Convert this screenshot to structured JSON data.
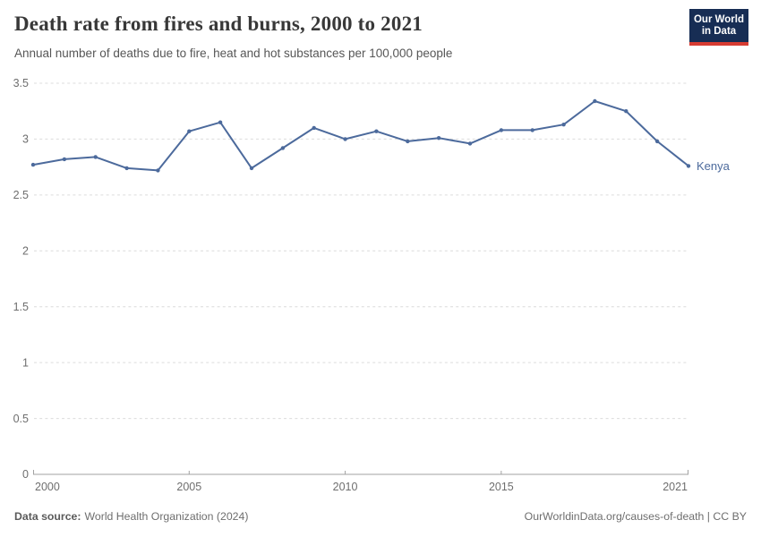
{
  "header": {
    "title": "Death rate from fires and burns, 2000 to 2021",
    "subtitle": "Annual number of deaths due to fire, heat and hot substances per 100,000 people",
    "logo": {
      "line1": "Our World",
      "line2": "in Data",
      "bg_color": "#172D54",
      "accent_color": "#D73C32"
    }
  },
  "footer": {
    "source_label": "Data source:",
    "source_text": "World Health Organization (2024)",
    "credit": "OurWorldinData.org/causes-of-death | CC BY"
  },
  "chart_data": {
    "type": "line",
    "title": "Death rate from fires and burns, 2000 to 2021",
    "subtitle": "Annual number of deaths due to fire, heat and hot substances per 100,000 people",
    "series": [
      {
        "name": "Kenya",
        "x": [
          2000,
          2001,
          2002,
          2003,
          2004,
          2005,
          2006,
          2007,
          2008,
          2009,
          2010,
          2011,
          2012,
          2013,
          2014,
          2015,
          2016,
          2017,
          2018,
          2019,
          2020,
          2021
        ],
        "values": [
          2.77,
          2.82,
          2.84,
          2.74,
          2.72,
          3.07,
          3.15,
          2.74,
          2.92,
          3.1,
          3.0,
          3.07,
          2.98,
          3.01,
          2.96,
          3.08,
          3.08,
          3.13,
          3.34,
          3.25,
          2.98,
          2.76
        ]
      }
    ],
    "xlim": [
      2000,
      2021
    ],
    "ylim": [
      0,
      3.5
    ],
    "xticks": [
      2000,
      2005,
      2010,
      2015,
      2021
    ],
    "yticks": [
      0,
      0.5,
      1,
      1.5,
      2,
      2.5,
      3,
      3.5
    ],
    "grid": "horizontal-dashed",
    "legend_position": "end-of-line-label",
    "colors": {
      "line": "#4C6A9C",
      "entity_label": "#4C6A9C",
      "axis": "#a2a2a2",
      "grid": "#dcdcdc",
      "tick_label": "#6e6e6e"
    }
  }
}
